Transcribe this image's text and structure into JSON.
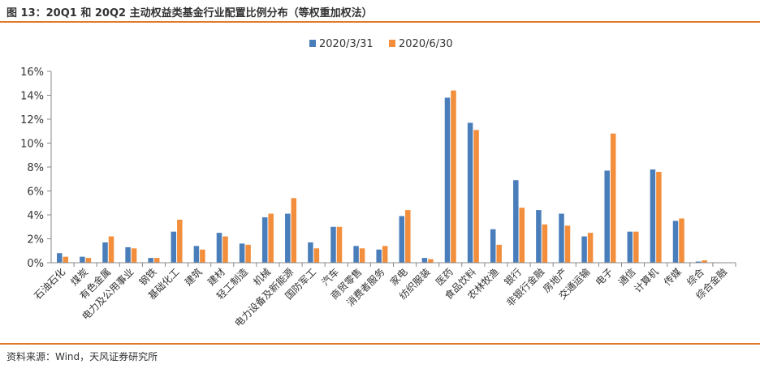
{
  "figure": {
    "title": "图 13：20Q1 和 20Q2 主动权益类基金行业配置比例分布（等权重加权法）",
    "source": "资料来源：Wind，天风证券研究所"
  },
  "colors": {
    "accent": "#e07a2a",
    "series_2020_3_31": "#4a7ebb",
    "series_2020_6_30": "#f28e3c",
    "axis": "#888888",
    "text": "#333333"
  },
  "chart_data": {
    "type": "bar",
    "title": "",
    "xlabel": "",
    "ylabel": "",
    "ylim": [
      0,
      16
    ],
    "yticks": [
      "0%",
      "2%",
      "4%",
      "6%",
      "8%",
      "10%",
      "12%",
      "14%",
      "16%"
    ],
    "grid": false,
    "legend_position": "top-center",
    "categories": [
      "石油石化",
      "煤炭",
      "有色金属",
      "电力及公用事业",
      "钢铁",
      "基础化工",
      "建筑",
      "建材",
      "轻工制造",
      "机械",
      "电力设备及新能源",
      "国防军工",
      "汽车",
      "商贸零售",
      "消费者服务",
      "家电",
      "纺织服装",
      "医药",
      "食品饮料",
      "农林牧渔",
      "银行",
      "非银行金融",
      "房地产",
      "交通运输",
      "电子",
      "通信",
      "计算机",
      "传媒",
      "综合",
      "综合金融"
    ],
    "series": [
      {
        "name": "2020/3/31",
        "values": [
          0.8,
          0.5,
          1.7,
          1.3,
          0.4,
          2.6,
          1.4,
          2.5,
          1.6,
          3.8,
          4.1,
          1.7,
          3.0,
          1.4,
          1.1,
          3.9,
          0.4,
          13.8,
          11.7,
          2.8,
          6.9,
          4.4,
          4.1,
          2.2,
          7.7,
          2.6,
          7.8,
          3.5,
          0.1,
          0.0
        ]
      },
      {
        "name": "2020/6/30",
        "values": [
          0.5,
          0.4,
          2.2,
          1.2,
          0.4,
          3.6,
          1.1,
          2.2,
          1.5,
          4.1,
          5.4,
          1.2,
          3.0,
          1.2,
          1.4,
          4.4,
          0.3,
          14.4,
          11.1,
          1.5,
          4.6,
          3.2,
          3.1,
          2.5,
          10.8,
          2.6,
          7.6,
          3.7,
          0.2,
          0.0
        ]
      }
    ]
  }
}
